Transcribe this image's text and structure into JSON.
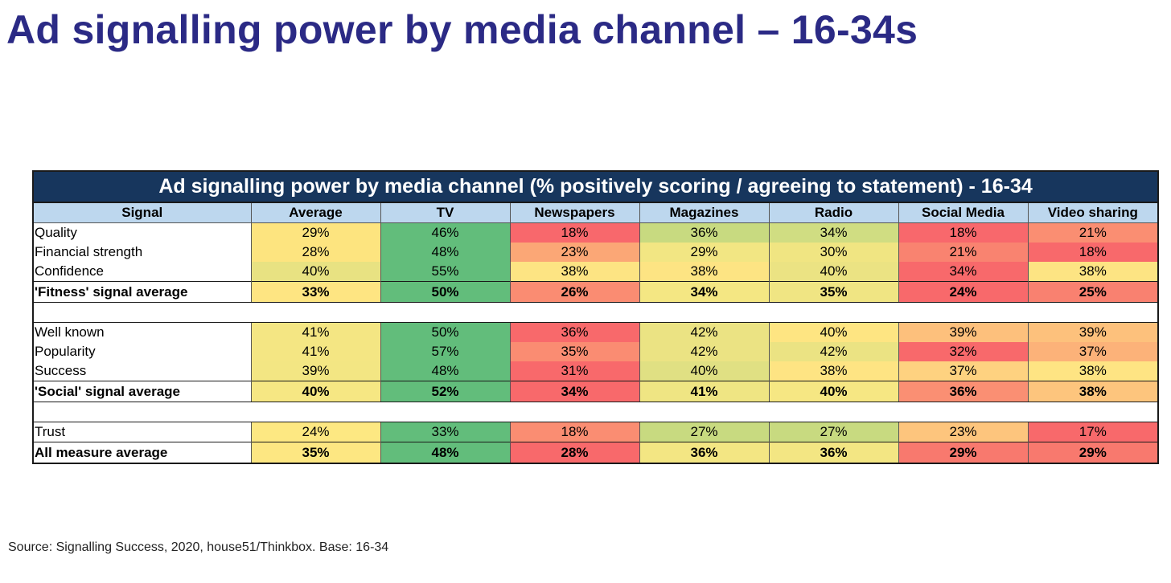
{
  "slide_title": "Ad signalling power by media channel – 16-34s",
  "source_note": "Source: Signalling Success, 2020, house51/Thinkbox. Base: 16-34",
  "chart_data": {
    "type": "table",
    "title": "Ad signalling power by media channel (% positively scoring / agreeing to statement) - 16-34",
    "columns": [
      "Signal",
      "Average",
      "TV",
      "Newspapers",
      "Magazines",
      "Radio",
      "Social Media",
      "Video sharing"
    ],
    "rows": [
      {
        "label": "Quality",
        "kind": "normal",
        "values": [
          "29%",
          "46%",
          "18%",
          "36%",
          "34%",
          "18%",
          "21%"
        ]
      },
      {
        "label": "Financial strength",
        "kind": "normal",
        "values": [
          "28%",
          "48%",
          "23%",
          "29%",
          "30%",
          "21%",
          "18%"
        ]
      },
      {
        "label": "Confidence",
        "kind": "normal",
        "values": [
          "40%",
          "55%",
          "38%",
          "38%",
          "40%",
          "34%",
          "38%"
        ]
      },
      {
        "label": "'Fitness' signal average",
        "kind": "avg",
        "values": [
          "33%",
          "50%",
          "26%",
          "34%",
          "35%",
          "24%",
          "25%"
        ]
      },
      {
        "label": "",
        "kind": "spacer",
        "values": []
      },
      {
        "label": "Well known",
        "kind": "normal",
        "values": [
          "41%",
          "50%",
          "36%",
          "42%",
          "40%",
          "39%",
          "39%"
        ]
      },
      {
        "label": "Popularity",
        "kind": "normal",
        "values": [
          "41%",
          "57%",
          "35%",
          "42%",
          "42%",
          "32%",
          "37%"
        ]
      },
      {
        "label": "Success",
        "kind": "normal",
        "values": [
          "39%",
          "48%",
          "31%",
          "40%",
          "38%",
          "37%",
          "38%"
        ]
      },
      {
        "label": "'Social' signal average",
        "kind": "avg",
        "values": [
          "40%",
          "52%",
          "34%",
          "41%",
          "40%",
          "36%",
          "38%"
        ]
      },
      {
        "label": "",
        "kind": "spacer",
        "values": []
      },
      {
        "label": "Trust",
        "kind": "normal",
        "values": [
          "24%",
          "33%",
          "18%",
          "27%",
          "27%",
          "23%",
          "17%"
        ]
      },
      {
        "label": "All measure average",
        "kind": "avg",
        "values": [
          "35%",
          "48%",
          "28%",
          "36%",
          "36%",
          "29%",
          "29%"
        ]
      }
    ],
    "cell_colors": [
      [
        "#fde47f",
        "#62bd7b",
        "#f8686c",
        "#c8da80",
        "#d0dd82",
        "#f8686c",
        "#fa8e72"
      ],
      [
        "#fde47f",
        "#62bd7b",
        "#fba776",
        "#f2e683",
        "#f0e582",
        "#f98370",
        "#f8696b"
      ],
      [
        "#e8e282",
        "#62bd7b",
        "#fde483",
        "#fde483",
        "#ebe383",
        "#f8696b",
        "#fde483"
      ],
      [
        "#fee582",
        "#62bd7b",
        "#fa8c72",
        "#f4e783",
        "#f0e583",
        "#f8696b",
        "#f98170"
      ],
      [],
      [
        "#f4e683",
        "#62bd7b",
        "#f8696b",
        "#ebe383",
        "#fee582",
        "#fdc07c",
        "#fdc17c"
      ],
      [
        "#f4e683",
        "#62bd7b",
        "#fa8c72",
        "#ebe383",
        "#ebe383",
        "#f8696b",
        "#fcb279"
      ],
      [
        "#f3e683",
        "#62bd7b",
        "#f8696b",
        "#e0e083",
        "#fee483",
        "#fed280",
        "#fee483"
      ],
      [
        "#f6e783",
        "#62bd7b",
        "#f8696b",
        "#efe583",
        "#f6e783",
        "#fa8f73",
        "#fdc57d"
      ],
      [],
      [
        "#fde882",
        "#62bd7b",
        "#fa8d72",
        "#c8da80",
        "#c8da80",
        "#fdc57d",
        "#f8696b"
      ],
      [
        "#fde782",
        "#62bd7b",
        "#f8696b",
        "#f3e683",
        "#f3e683",
        "#f8796e",
        "#f8796e"
      ]
    ]
  }
}
